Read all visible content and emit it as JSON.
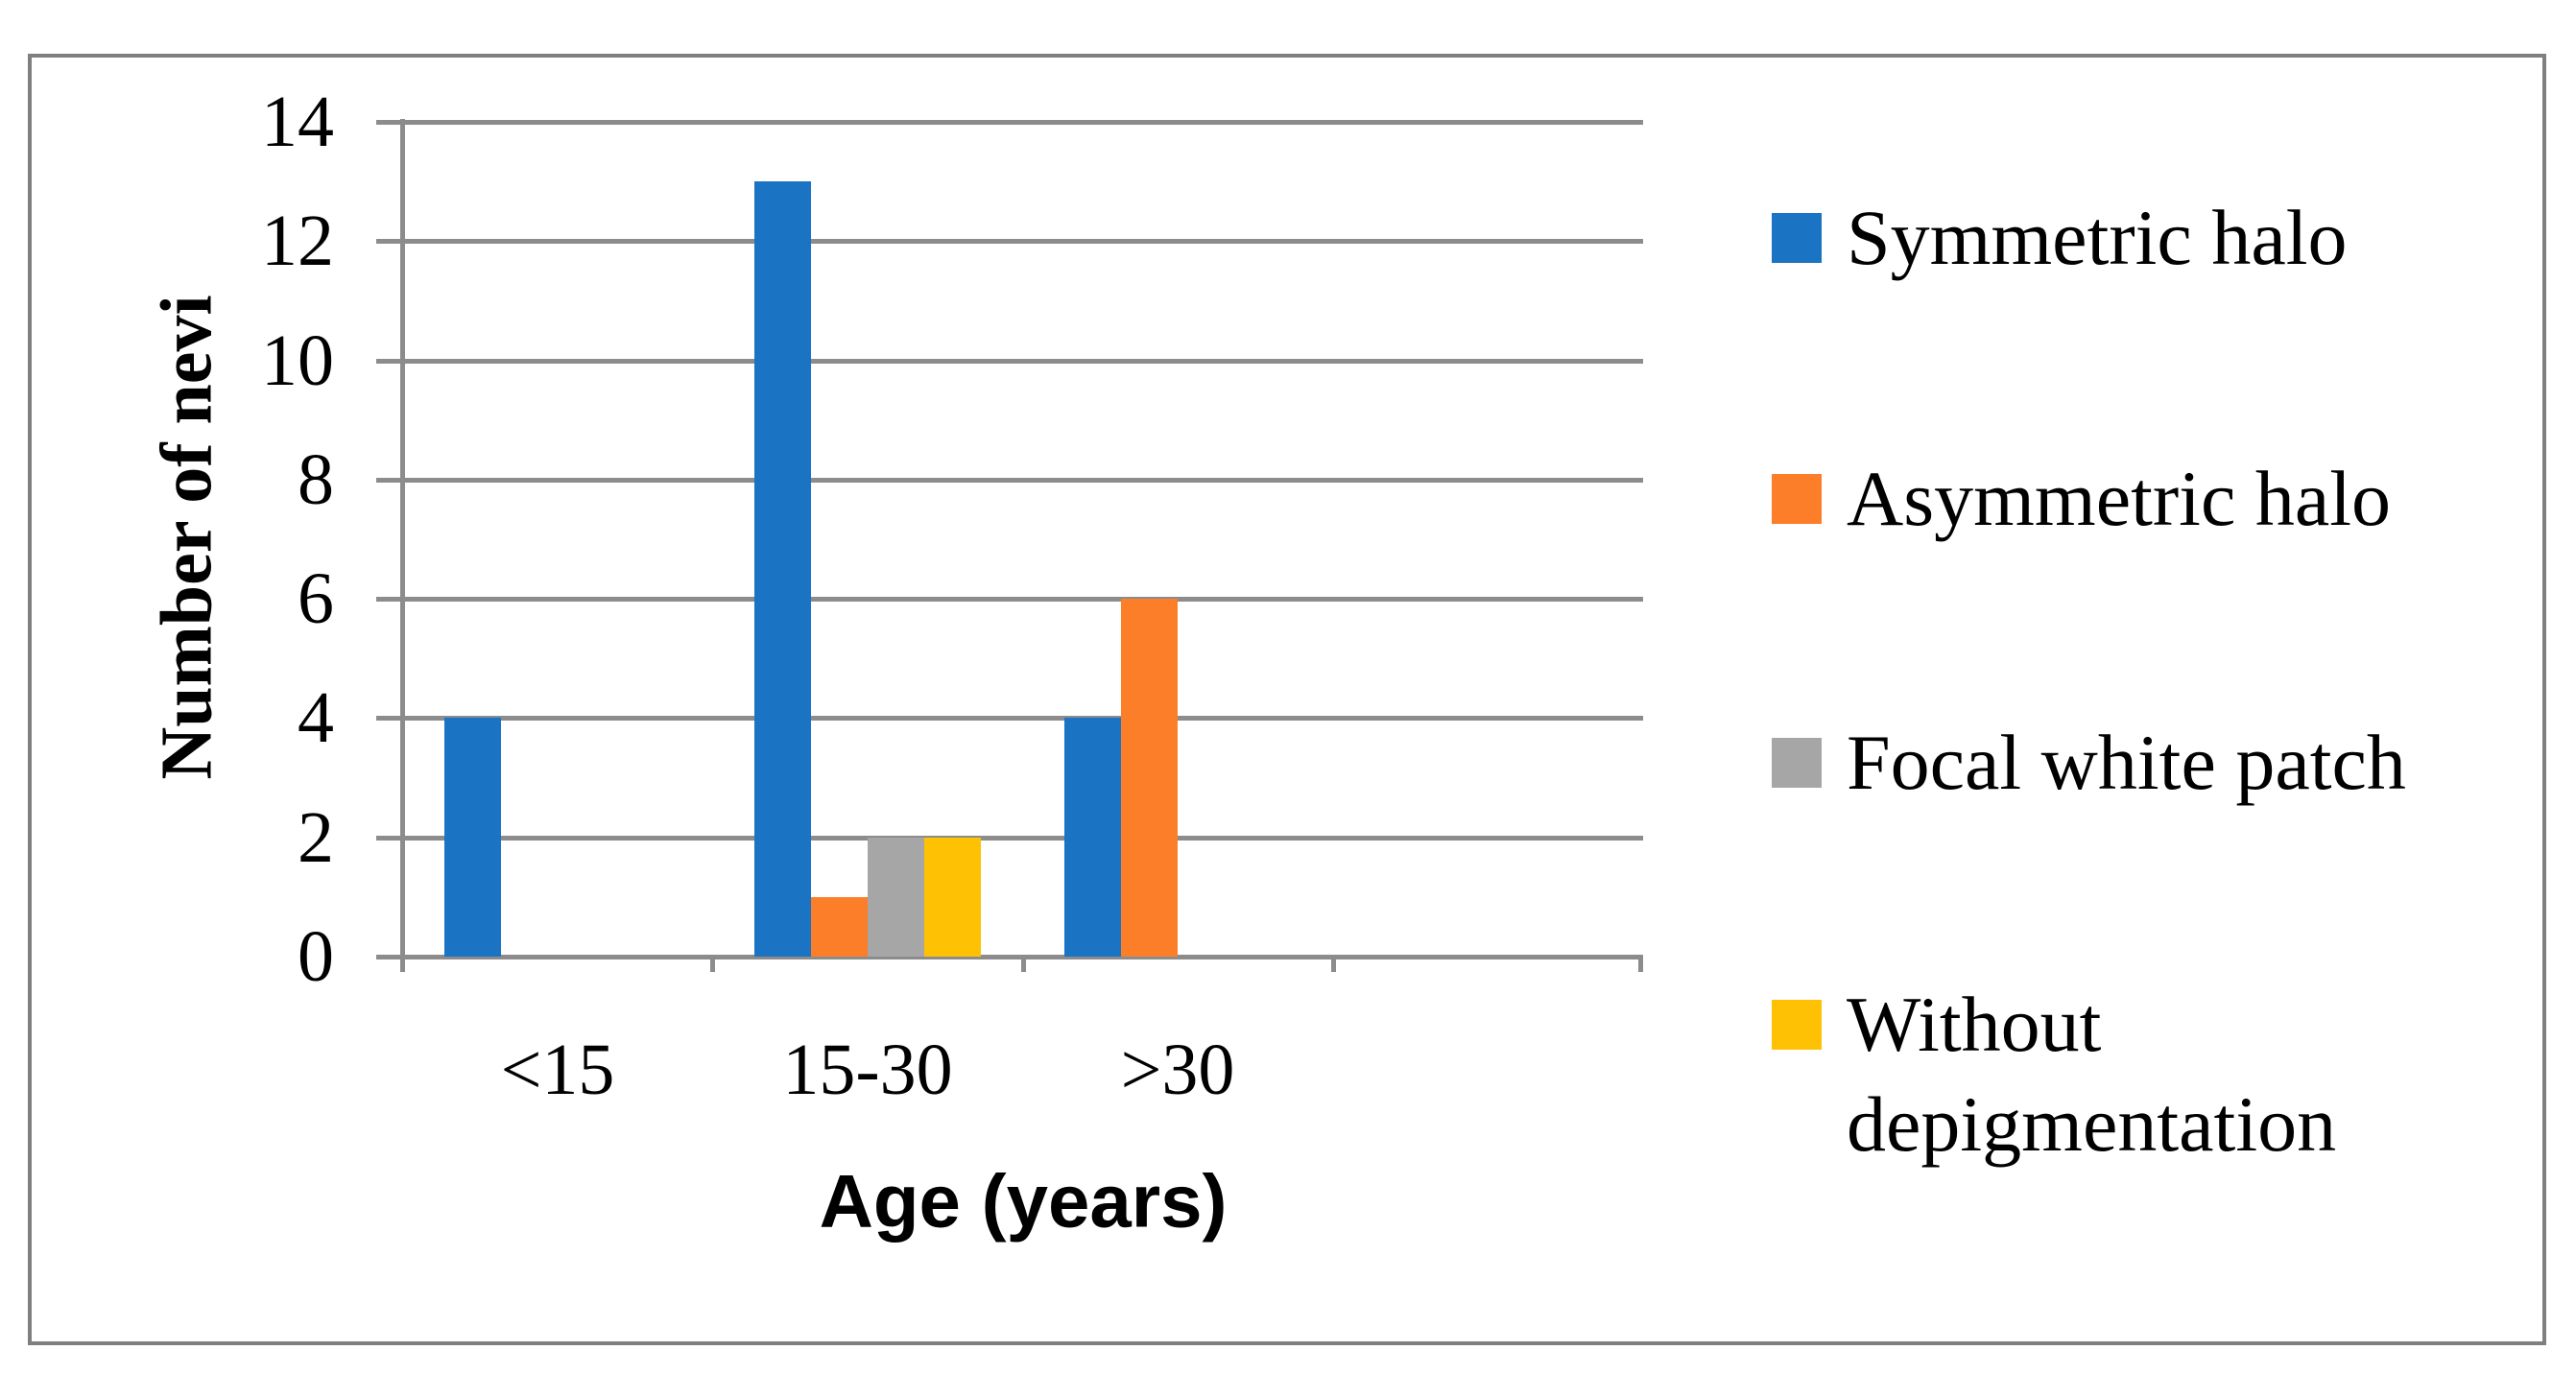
{
  "figure": {
    "background": "#FFFFFF",
    "border_color": "#7F7F7F"
  },
  "chart_data": {
    "type": "bar",
    "title": "",
    "categories": [
      "<15",
      "15-30",
      ">30"
    ],
    "series": [
      {
        "name": "Symmetric halo",
        "color": "#1B73C4",
        "values": [
          4,
          13,
          4
        ]
      },
      {
        "name": "Asymmetric halo",
        "color": "#FC7E28",
        "values": [
          0,
          1,
          6
        ]
      },
      {
        "name": "Focal white patch",
        "color": "#A6A6A6",
        "values": [
          0,
          2,
          0
        ]
      },
      {
        "name": "Without depigmentation",
        "color": "#FFC103",
        "values": [
          0,
          2,
          0
        ]
      }
    ],
    "xlabel": "Age (years)",
    "ylabel": "Number of nevi",
    "ylim": [
      0,
      14
    ],
    "yticks": [
      0,
      2,
      4,
      6,
      8,
      10,
      12,
      14
    ],
    "grid": true,
    "gridline_color": "#8C8C8C",
    "axis_color": "#8C8C8C",
    "legend_position": "right",
    "category_slots": 4
  }
}
